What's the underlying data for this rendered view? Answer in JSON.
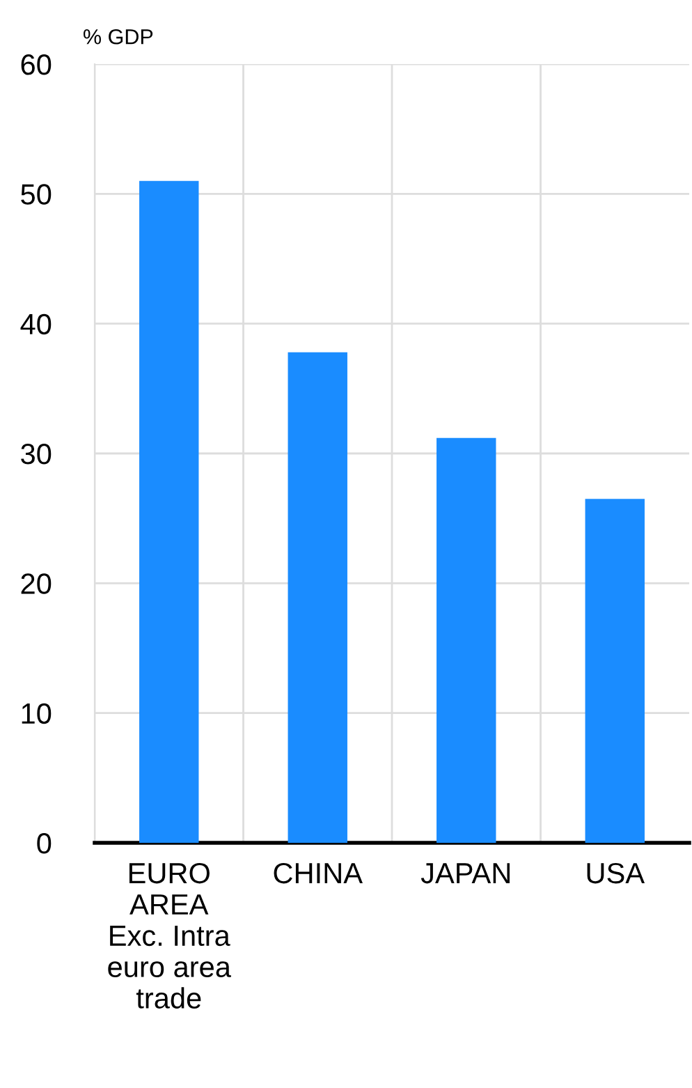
{
  "chart_data": {
    "type": "bar",
    "ylabel": "% GDP",
    "categories": [
      "EURO\nAREA\nExc. Intra\neuro area\ntrade",
      "CHINA",
      "JAPAN",
      "USA"
    ],
    "values": [
      51.0,
      37.8,
      31.2,
      26.5
    ],
    "color": "#1a8cff",
    "ylim": [
      0,
      60
    ],
    "yticks": [
      0,
      10,
      20,
      30,
      40,
      50,
      60
    ],
    "grid": true
  }
}
